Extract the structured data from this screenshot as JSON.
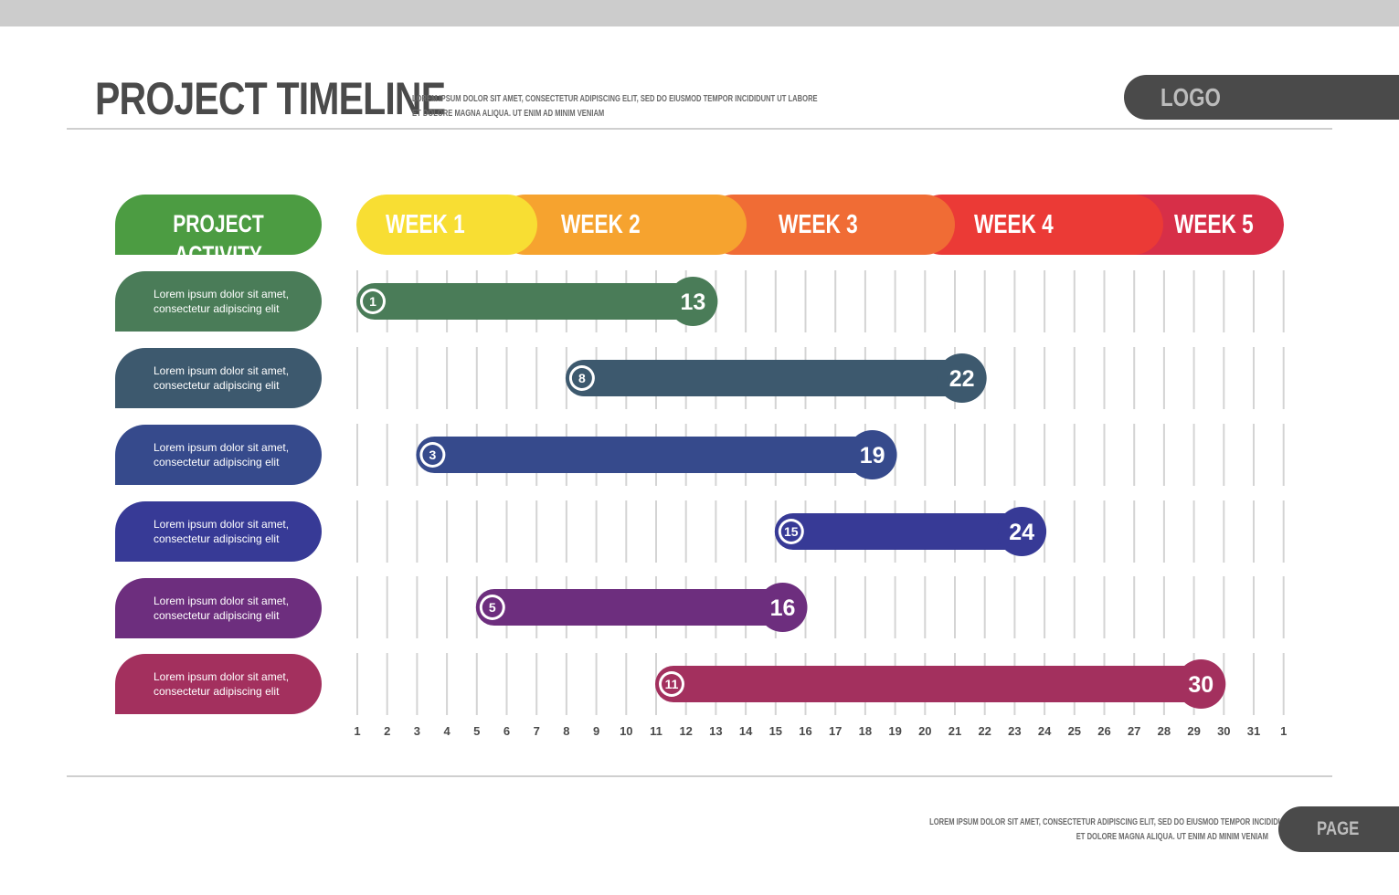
{
  "header": {
    "title": "PROJECT TIMELINE",
    "subtitle_line1": "LOREM IPSUM DOLOR SIT AMET, CONSECTETUR ADIPISCING ELIT, SED DO EIUSMOD TEMPOR INCIDIDUNT UT LABORE",
    "subtitle_line2": "ET DOLORE MAGNA ALIQUA. UT ENIM AD MINIM VENIAM",
    "logo": "LOGO"
  },
  "footer": {
    "text_line1": "LOREM IPSUM DOLOR SIT AMET, CONSECTETUR ADIPISCING ELIT, SED DO EIUSMOD TEMPOR INCIDIDUNT UT LABORE",
    "text_line2": "ET DOLORE MAGNA ALIQUA. UT ENIM AD MINIM VENIAM",
    "page": "PAGE"
  },
  "activity_header": "PROJECT ACTIVITY",
  "activities": [
    {
      "line1": "Lorem ipsum dolor sit amet,",
      "line2": "consectetur adipiscing elit",
      "color": "#4a7c58"
    },
    {
      "line1": "Lorem ipsum dolor sit amet,",
      "line2": "consectetur adipiscing elit",
      "color": "#3d596e"
    },
    {
      "line1": "Lorem ipsum dolor sit amet,",
      "line2": "consectetur adipiscing elit",
      "color": "#364a8c"
    },
    {
      "line1": "Lorem ipsum dolor sit amet,",
      "line2": "consectetur adipiscing elit",
      "color": "#373a96"
    },
    {
      "line1": "Lorem ipsum dolor sit amet,",
      "line2": "consectetur adipiscing elit",
      "color": "#6d2e7e"
    },
    {
      "line1": "Lorem ipsum dolor sit amet,",
      "line2": "consectetur adipiscing elit",
      "color": "#a3305e"
    }
  ],
  "weeks": [
    {
      "label": "WEEK 1",
      "color": "#f8de33"
    },
    {
      "label": "WEEK 2",
      "color": "#f6a32f"
    },
    {
      "label": "WEEK 3",
      "color": "#f06c35"
    },
    {
      "label": "WEEK 4",
      "color": "#eb3a36"
    },
    {
      "label": "WEEK 5",
      "color": "#d72f48"
    }
  ],
  "chart_data": {
    "type": "gantt",
    "x_ticks": [
      "1",
      "2",
      "3",
      "4",
      "5",
      "6",
      "7",
      "8",
      "9",
      "10",
      "11",
      "12",
      "13",
      "14",
      "15",
      "16",
      "17",
      "18",
      "19",
      "20",
      "21",
      "22",
      "23",
      "24",
      "25",
      "26",
      "27",
      "28",
      "29",
      "30",
      "31",
      "1"
    ],
    "tasks": [
      {
        "start": 1,
        "end": 13,
        "color": "#4a7c58"
      },
      {
        "start": 8,
        "end": 22,
        "color": "#3d596e"
      },
      {
        "start": 3,
        "end": 19,
        "color": "#364a8c"
      },
      {
        "start": 15,
        "end": 24,
        "color": "#373a96"
      },
      {
        "start": 5,
        "end": 16,
        "color": "#6d2e7e"
      },
      {
        "start": 11,
        "end": 30,
        "color": "#a3305e"
      }
    ]
  }
}
